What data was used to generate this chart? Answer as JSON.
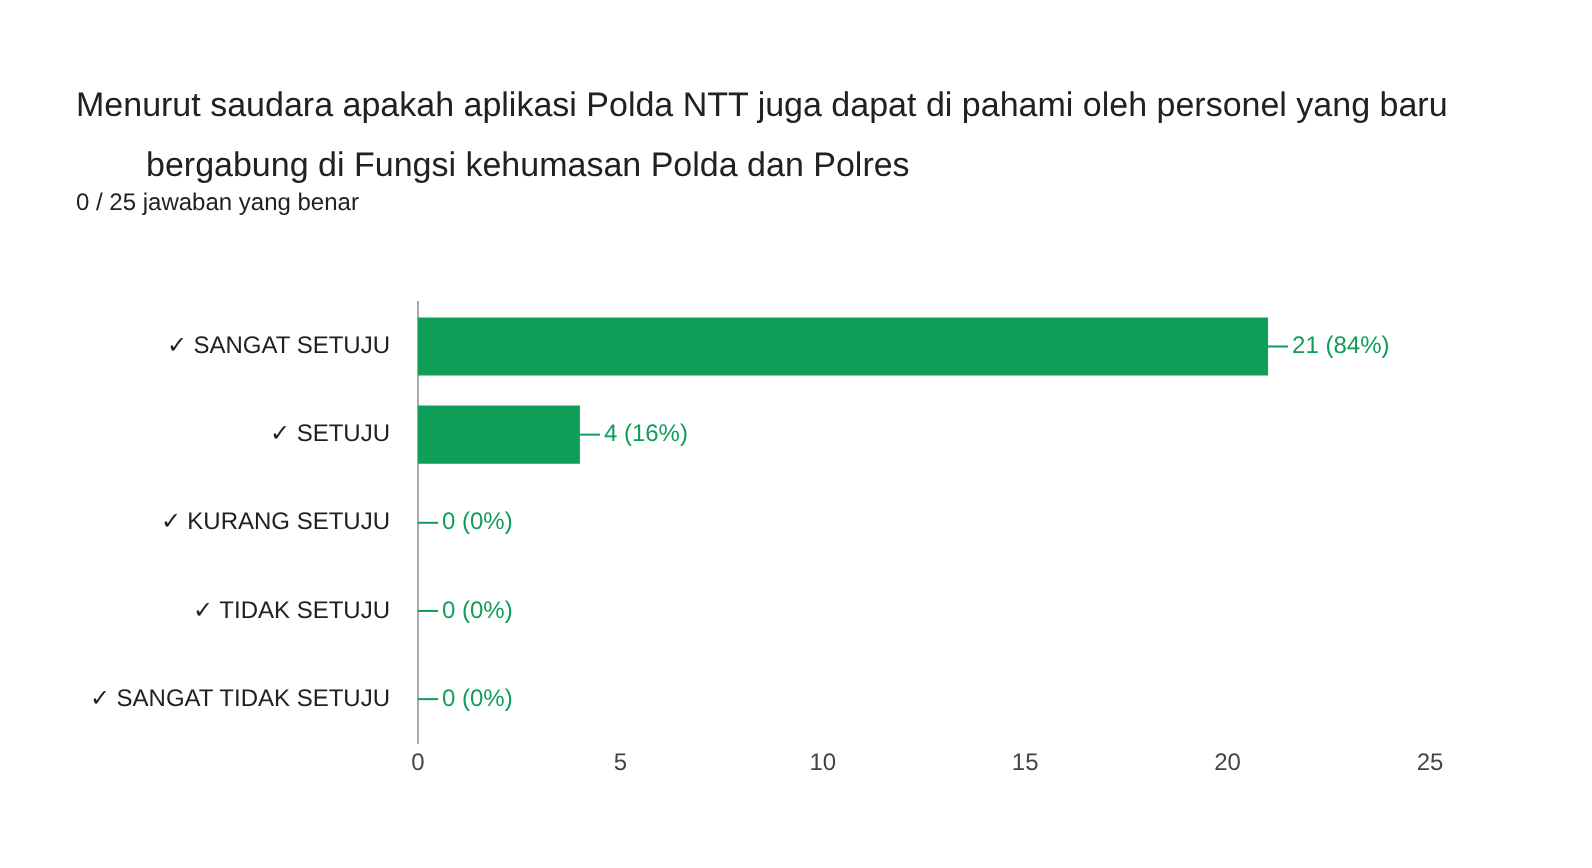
{
  "chart_data": {
    "type": "bar",
    "orientation": "horizontal",
    "title": "Menurut saudara apakah aplikasi Polda NTT juga dapat di pahami oleh personel yang baru bergabung di Fungsi kehumasan Polda dan Polres",
    "subtitle": "0 / 25 jawaban yang benar",
    "categories": [
      "✓ SANGAT SETUJU",
      "✓ SETUJU",
      "✓ KURANG SETUJU",
      "✓ TIDAK SETUJU",
      "✓ SANGAT TIDAK SETUJU"
    ],
    "values": [
      21,
      4,
      0,
      0,
      0
    ],
    "value_labels": [
      "21 (84%)",
      "4 (16%)",
      "0 (0%)",
      "0 (0%)",
      "0 (0%)"
    ],
    "color": "#0f9d58",
    "xlim": [
      0,
      25
    ],
    "xticks": [
      0,
      5,
      10,
      15,
      20,
      25
    ]
  }
}
